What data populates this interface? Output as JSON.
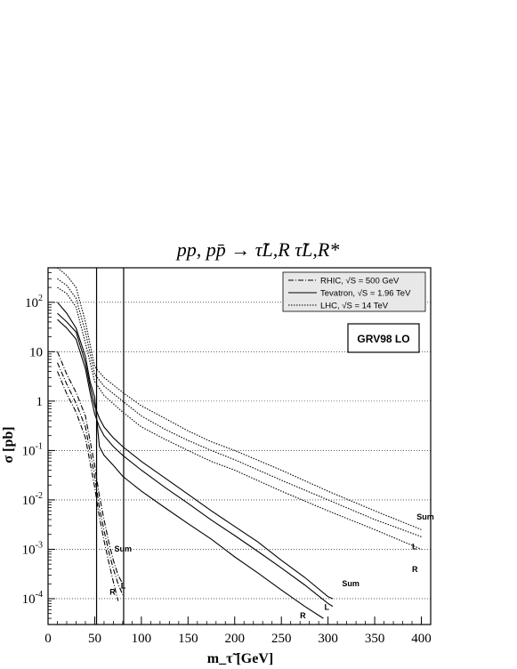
{
  "title": "pp, pp̄ → τ̃L,R τ̃L,R*",
  "chart_data": {
    "type": "line",
    "title": "pp, pp̄ → τ̃L,R τ̃L,R*",
    "xlabel": "m_τ̃ [GeV]",
    "ylabel": "σ [pb]",
    "xlim": [
      0,
      410
    ],
    "ylim": [
      3e-05,
      500
    ],
    "y_scale": "log",
    "grid": "horizontal dotted",
    "x_ticks": [
      "0",
      "50",
      "100",
      "150",
      "200",
      "250",
      "300",
      "350",
      "400"
    ],
    "y_ticks": [
      {
        "value": 100,
        "label": "10^2"
      },
      {
        "value": 10,
        "label": "10"
      },
      {
        "value": 1,
        "label": "1"
      },
      {
        "value": 0.1,
        "label": "10^-1"
      },
      {
        "value": 0.01,
        "label": "10^-2"
      },
      {
        "value": 0.001,
        "label": "10^-3"
      },
      {
        "value": 0.0001,
        "label": "10^-4"
      }
    ],
    "vlines": [
      52,
      81
    ],
    "legend": {
      "position": "top-right",
      "entries": [
        {
          "label": "RHIC, √S = 500 GeV",
          "style": "dashdot"
        },
        {
          "label": "Tevatron, √S = 1.96 TeV",
          "style": "solid"
        },
        {
          "label": "LHC, √S = 14 TeV",
          "style": "dotted"
        }
      ]
    },
    "annotation": "GRV98 LO",
    "series": [
      {
        "name": "Sum",
        "group": "RHIC",
        "style": "dashdot",
        "x": [
          10,
          20,
          30,
          40,
          50,
          55,
          60,
          65,
          70,
          75,
          80
        ],
        "y": [
          10,
          3.5,
          1.5,
          0.5,
          0.05,
          0.012,
          0.004,
          0.0014,
          0.0006,
          0.0003,
          0.0002
        ]
      },
      {
        "name": "L",
        "group": "RHIC",
        "style": "dashdot",
        "x": [
          10,
          20,
          30,
          40,
          50,
          55,
          60,
          65,
          70,
          75,
          80
        ],
        "y": [
          6,
          2.2,
          0.9,
          0.3,
          0.03,
          0.007,
          0.0024,
          0.0009,
          0.0004,
          0.0002,
          0.00012
        ]
      },
      {
        "name": "R",
        "group": "RHIC",
        "style": "dashdot",
        "x": [
          10,
          20,
          30,
          40,
          50,
          55,
          60,
          65,
          70,
          75
        ],
        "y": [
          4,
          1.4,
          0.6,
          0.18,
          0.018,
          0.0045,
          0.0015,
          0.00055,
          0.00022,
          9e-05
        ]
      },
      {
        "name": "Sum",
        "group": "Tevatron",
        "style": "solid",
        "x": [
          10,
          20,
          30,
          40,
          45,
          50,
          55,
          60,
          70,
          80,
          100,
          125,
          150,
          175,
          200,
          225,
          250,
          275,
          300,
          305
        ],
        "y": [
          60,
          40,
          25,
          6,
          2,
          0.8,
          0.45,
          0.3,
          0.18,
          0.12,
          0.06,
          0.028,
          0.013,
          0.006,
          0.0029,
          0.0014,
          0.0006,
          0.00027,
          0.00011,
          0.0001
        ]
      },
      {
        "name": "L",
        "group": "Tevatron",
        "style": "solid",
        "x": [
          10,
          20,
          30,
          40,
          45,
          50,
          55,
          60,
          70,
          80,
          100,
          125,
          150,
          175,
          200,
          225,
          250,
          275,
          300,
          305
        ],
        "y": [
          45,
          30,
          18,
          4.5,
          1.5,
          0.55,
          0.3,
          0.2,
          0.12,
          0.08,
          0.04,
          0.018,
          0.0085,
          0.0039,
          0.0019,
          0.0009,
          0.00042,
          0.00019,
          8e-05,
          7e-05
        ]
      },
      {
        "name": "R",
        "group": "Tevatron",
        "style": "solid",
        "x": [
          10,
          20,
          30,
          40,
          45,
          50,
          55,
          60,
          70,
          80,
          100,
          125,
          150,
          175,
          200,
          225,
          250,
          275,
          295
        ],
        "y": [
          100,
          60,
          30,
          8,
          2.5,
          1.2,
          0.12,
          0.08,
          0.05,
          0.03,
          0.015,
          0.007,
          0.0033,
          0.0016,
          0.0007,
          0.00033,
          0.00015,
          7e-05,
          4e-05
        ]
      },
      {
        "name": "Sum",
        "group": "LHC",
        "style": "dotted",
        "x": [
          10,
          20,
          30,
          40,
          50,
          60,
          80,
          100,
          125,
          150,
          175,
          200,
          250,
          300,
          350,
          400
        ],
        "y": [
          500,
          350,
          200,
          40,
          5,
          3,
          1.5,
          0.8,
          0.45,
          0.25,
          0.15,
          0.1,
          0.04,
          0.015,
          0.006,
          0.0025
        ]
      },
      {
        "name": "L",
        "group": "LHC",
        "style": "dotted",
        "x": [
          10,
          20,
          30,
          40,
          50,
          60,
          80,
          100,
          125,
          150,
          175,
          200,
          250,
          300,
          350,
          400
        ],
        "y": [
          300,
          220,
          120,
          25,
          3.5,
          2,
          1,
          0.5,
          0.27,
          0.16,
          0.1,
          0.065,
          0.025,
          0.01,
          0.004,
          0.0018
        ]
      },
      {
        "name": "R",
        "group": "LHC",
        "style": "dotted",
        "x": [
          10,
          20,
          30,
          40,
          50,
          60,
          80,
          100,
          125,
          150,
          175,
          200,
          250,
          300,
          350,
          400
        ],
        "y": [
          200,
          150,
          80,
          15,
          2.5,
          1.3,
          0.6,
          0.3,
          0.17,
          0.1,
          0.06,
          0.04,
          0.015,
          0.006,
          0.0025,
          0.001
        ]
      }
    ],
    "curve_labels": [
      {
        "text": "Sum",
        "x": 71,
        "y": 0.0009
      },
      {
        "text": "L",
        "x": 78,
        "y": 0.00016
      },
      {
        "text": "R",
        "x": 66,
        "y": 0.00012
      },
      {
        "text": "Sum",
        "x": 315,
        "y": 0.00018
      },
      {
        "text": "L",
        "x": 296,
        "y": 6e-05
      },
      {
        "text": "R",
        "x": 270,
        "y": 4e-05
      },
      {
        "text": "Sum",
        "x": 395,
        "y": 0.004
      },
      {
        "text": "L",
        "x": 390,
        "y": 0.001
      },
      {
        "text": "R",
        "x": 390,
        "y": 0.00035
      }
    ]
  }
}
